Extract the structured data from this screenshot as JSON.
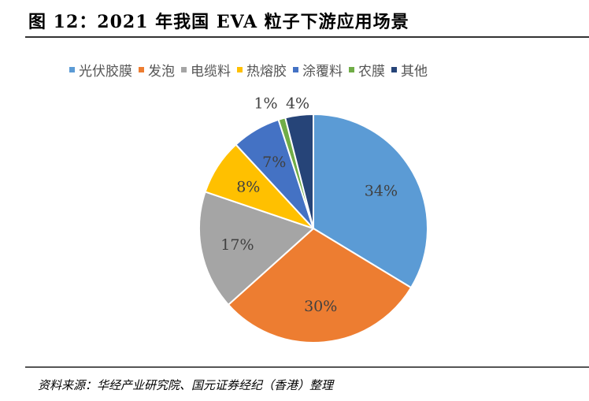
{
  "title": "图 12：2021 年我国 EVA 粒子下游应用场景",
  "source": "资料来源：华经产业研究院、国元证券经纪（香港）整理",
  "chart_data": {
    "type": "pie",
    "title": "2021 年我国 EVA 粒子下游应用场景",
    "legend_position": "top",
    "categories": [
      "光伏胶膜",
      "发泡",
      "电缆料",
      "热熔胶",
      "涂覆料",
      "农膜",
      "其他"
    ],
    "values": [
      34,
      30,
      17,
      8,
      7,
      1,
      4
    ],
    "labels": [
      "34%",
      "30%",
      "17%",
      "8%",
      "7%",
      "1%",
      "4%"
    ],
    "colors": [
      "#5B9BD5",
      "#ED7D31",
      "#A5A5A5",
      "#FFC000",
      "#4472C4",
      "#70AD47",
      "#264478"
    ]
  }
}
